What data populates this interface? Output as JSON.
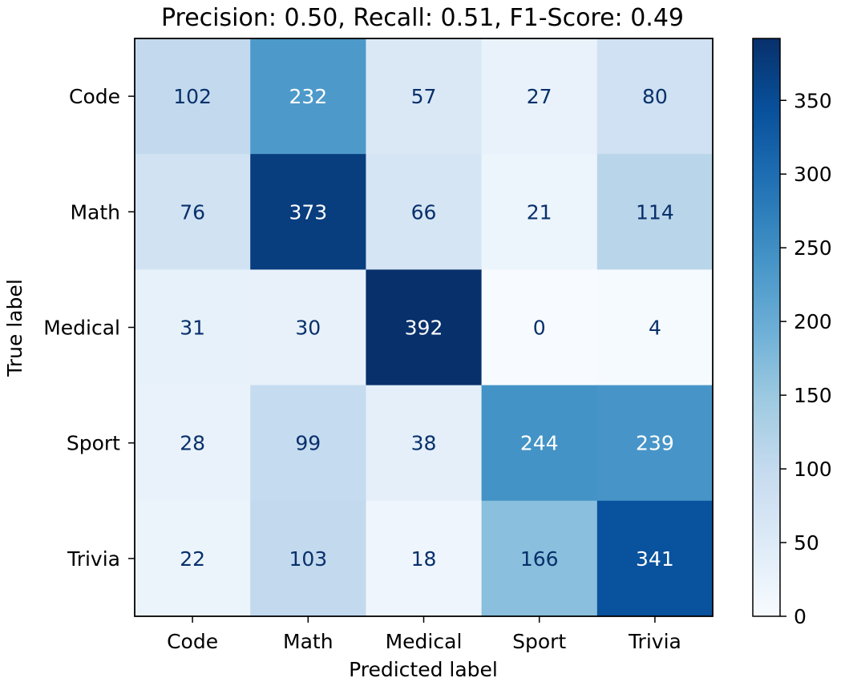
{
  "chart_data": {
    "type": "heatmap",
    "title": "Precision: 0.50, Recall: 0.51, F1-Score: 0.49",
    "xlabel": "Predicted label",
    "ylabel": "True label",
    "x_categories": [
      "Code",
      "Math",
      "Medical",
      "Sport",
      "Trivia"
    ],
    "y_categories": [
      "Code",
      "Math",
      "Medical",
      "Sport",
      "Trivia"
    ],
    "values": [
      [
        102,
        232,
        57,
        27,
        80
      ],
      [
        76,
        373,
        66,
        21,
        114
      ],
      [
        31,
        30,
        392,
        0,
        4
      ],
      [
        28,
        99,
        38,
        244,
        239
      ],
      [
        22,
        103,
        18,
        166,
        341
      ]
    ],
    "colorbar": {
      "colormap": "Blues",
      "range": [
        0,
        392
      ],
      "ticks": [
        0,
        50,
        100,
        150,
        200,
        250,
        300,
        350
      ]
    },
    "text_colors": {
      "light": "#ffffff",
      "dark": "#08306b"
    }
  }
}
